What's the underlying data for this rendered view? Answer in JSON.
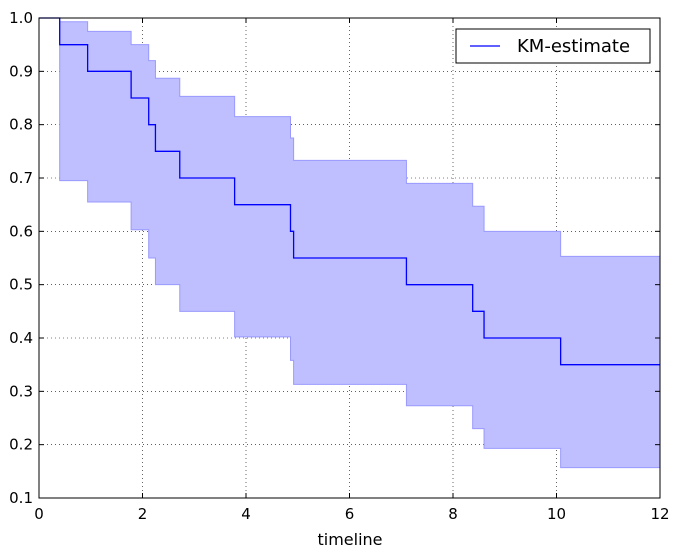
{
  "chart_data": {
    "type": "line",
    "title": "",
    "xlabel": "timeline",
    "ylabel": "",
    "xlim": [
      0,
      12
    ],
    "ylim": [
      0.1,
      1.0
    ],
    "xticks": [
      0,
      2,
      4,
      6,
      8,
      10,
      12
    ],
    "xtick_labels": [
      "0",
      "2",
      "4",
      "6",
      "8",
      "10",
      "12"
    ],
    "yticks": [
      0.1,
      0.2,
      0.3,
      0.4,
      0.5,
      0.6,
      0.7,
      0.8,
      0.9,
      1.0
    ],
    "ytick_labels": [
      "0.1",
      "0.2",
      "0.3",
      "0.4",
      "0.5",
      "0.6",
      "0.7",
      "0.8",
      "0.9",
      "1.0"
    ],
    "grid": true,
    "legend_position": "top-right",
    "colors": {
      "line": "#0000ff",
      "band": "#bfbfff",
      "band_edge": "#9999ff"
    },
    "series": [
      {
        "name": "KM-estimate",
        "step": "post",
        "x": [
          0.0,
          0.4,
          0.94,
          1.78,
          2.12,
          2.25,
          2.72,
          3.78,
          4.86,
          4.92,
          7.1,
          8.38,
          8.6,
          10.08,
          12.0
        ],
        "y": [
          1.0,
          0.95,
          0.9,
          0.85,
          0.8,
          0.75,
          0.7,
          0.65,
          0.6,
          0.55,
          0.5,
          0.45,
          0.4,
          0.35,
          0.35
        ],
        "ci_upper": [
          1.0,
          0.993,
          0.975,
          0.95,
          0.92,
          0.887,
          0.853,
          0.815,
          0.775,
          0.733,
          0.69,
          0.647,
          0.6,
          0.553,
          0.553
        ],
        "ci_lower": [
          1.0,
          0.695,
          0.655,
          0.603,
          0.55,
          0.5,
          0.45,
          0.402,
          0.358,
          0.313,
          0.273,
          0.23,
          0.193,
          0.157,
          0.157
        ]
      }
    ]
  }
}
